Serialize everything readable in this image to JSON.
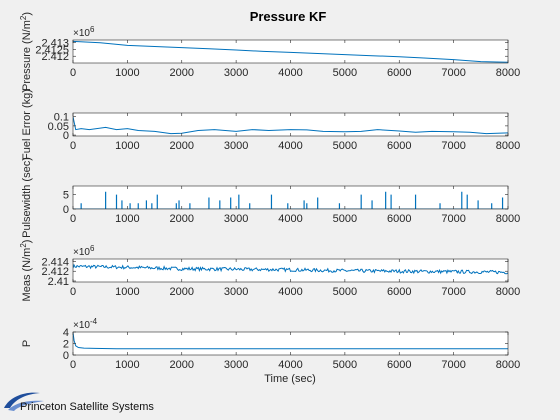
{
  "figure": {
    "title": "Pressure KF",
    "xlabel": "Time (sec)",
    "logo_text": "Princeton Satellite Systems",
    "line_color": "#0072BD"
  },
  "chart_data": [
    {
      "type": "line",
      "ylabel_main": "Pressure (N/m",
      "ylabel_sup": "2",
      "ylabel_end": ")",
      "exponent_base": "×10",
      "exponent_power": "6",
      "xlim": [
        0,
        8000
      ],
      "ylim": [
        2.4115,
        2.4132
      ],
      "xticks": [
        "0",
        "1000",
        "2000",
        "3000",
        "4000",
        "5000",
        "6000",
        "7000",
        "8000"
      ],
      "yticks": [
        {
          "v": 2.413,
          "label": "2.413"
        },
        {
          "v": 2.4125,
          "label": "2.4125"
        },
        {
          "v": 2.412,
          "label": "2.412"
        }
      ],
      "series": [
        {
          "x": [
            0,
            500,
            1000,
            1500,
            2000,
            2500,
            3000,
            3500,
            4000,
            4500,
            5000,
            5500,
            6000,
            6500,
            7000,
            7500,
            8000
          ],
          "y": [
            2.4131,
            2.413,
            2.4128,
            2.41272,
            2.41264,
            2.41256,
            2.41246,
            2.41236,
            2.41228,
            2.4122,
            2.41212,
            2.41204,
            2.41196,
            2.41186,
            2.41175,
            2.4116,
            2.41155
          ]
        }
      ]
    },
    {
      "type": "line",
      "ylabel_main": "Fuel Error (kg)",
      "xlim": [
        0,
        8000
      ],
      "ylim": [
        -0.005,
        0.12
      ],
      "xticks": [
        "0",
        "1000",
        "2000",
        "3000",
        "4000",
        "5000",
        "6000",
        "7000",
        "8000"
      ],
      "yticks": [
        {
          "v": 0.1,
          "label": "0.1"
        },
        {
          "v": 0.05,
          "label": "0.05"
        },
        {
          "v": 0,
          "label": "0"
        }
      ],
      "series": [
        {
          "x": [
            0,
            50,
            150,
            300,
            600,
            800,
            1000,
            1200,
            1500,
            1800,
            2000,
            2300,
            2600,
            3000,
            3300,
            3600,
            4000,
            4300,
            4600,
            5000,
            5300,
            5600,
            6000,
            6300,
            6600,
            7000,
            7300,
            7600,
            8000
          ],
          "y": [
            0.1,
            0.03,
            0.035,
            0.03,
            0.042,
            0.03,
            0.035,
            0.025,
            0.02,
            0.008,
            0.01,
            0.025,
            0.03,
            0.02,
            0.03,
            0.025,
            0.03,
            0.028,
            0.02,
            0.018,
            0.02,
            0.03,
            0.022,
            0.015,
            0.02,
            0.018,
            0.015,
            0.008,
            0.012
          ]
        }
      ]
    },
    {
      "type": "line",
      "ylabel_main": "Pulsewidth (sec)",
      "xlim": [
        0,
        8000
      ],
      "ylim": [
        0,
        8
      ],
      "xticks": [
        "0",
        "1000",
        "2000",
        "3000",
        "4000",
        "5000",
        "6000",
        "7000",
        "8000"
      ],
      "yticks": [
        {
          "v": 5,
          "label": "5"
        },
        {
          "v": 0,
          "label": "0"
        }
      ],
      "series": [
        {
          "pulses": [
            [
              150,
              2
            ],
            [
              600,
              6
            ],
            [
              800,
              5
            ],
            [
              900,
              3
            ],
            [
              1050,
              2
            ],
            [
              1200,
              2
            ],
            [
              1350,
              3
            ],
            [
              1450,
              2
            ],
            [
              1550,
              5
            ],
            [
              1900,
              2
            ],
            [
              1950,
              3
            ],
            [
              2150,
              2
            ],
            [
              2500,
              4
            ],
            [
              2700,
              3
            ],
            [
              2900,
              4
            ],
            [
              3050,
              5
            ],
            [
              3250,
              2
            ],
            [
              3650,
              5
            ],
            [
              3950,
              2
            ],
            [
              4250,
              3
            ],
            [
              4300,
              2
            ],
            [
              4500,
              4
            ],
            [
              4900,
              2
            ],
            [
              5300,
              5
            ],
            [
              5500,
              3
            ],
            [
              5750,
              6
            ],
            [
              5850,
              5
            ],
            [
              6300,
              5
            ],
            [
              6750,
              2
            ],
            [
              7150,
              6
            ],
            [
              7250,
              5
            ],
            [
              7450,
              3
            ],
            [
              7700,
              2
            ],
            [
              7900,
              4
            ]
          ]
        }
      ]
    },
    {
      "type": "line",
      "ylabel_main": "Meas (N/m",
      "ylabel_sup": "2",
      "ylabel_end": ")",
      "exponent_base": "×10",
      "exponent_power": "6",
      "xlim": [
        0,
        8000
      ],
      "ylim": [
        2.4098,
        2.4145
      ],
      "xticks": [
        "0",
        "1000",
        "2000",
        "3000",
        "4000",
        "5000",
        "6000",
        "7000",
        "8000"
      ],
      "yticks": [
        {
          "v": 2.414,
          "label": "2.414"
        },
        {
          "v": 2.412,
          "label": "2.412"
        },
        {
          "v": 2.41,
          "label": "2.41"
        }
      ],
      "series": [
        {
          "x": [
            0,
            1000,
            2000,
            3000,
            4000,
            5000,
            6000,
            7000,
            8000
          ],
          "y": [
            2.413,
            2.4128,
            2.4125,
            2.4124,
            2.4123,
            2.4121,
            2.412,
            2.4119,
            2.4118
          ],
          "noise": 0.00035
        }
      ]
    },
    {
      "type": "line",
      "ylabel_main": "P",
      "exponent_base": "×10",
      "exponent_power": "-4",
      "xlim": [
        0,
        8000
      ],
      "ylim": [
        0,
        4
      ],
      "xticks": [
        "0",
        "1000",
        "2000",
        "3000",
        "4000",
        "5000",
        "6000",
        "7000",
        "8000"
      ],
      "yticks": [
        {
          "v": 4,
          "label": "4"
        },
        {
          "v": 2,
          "label": "2"
        },
        {
          "v": 0,
          "label": "0"
        }
      ],
      "series": [
        {
          "x": [
            0,
            20,
            50,
            100,
            200,
            400,
            800,
            8000
          ],
          "y": [
            3.9,
            2.5,
            1.6,
            1.3,
            1.2,
            1.15,
            1.1,
            1.1
          ]
        }
      ]
    }
  ]
}
